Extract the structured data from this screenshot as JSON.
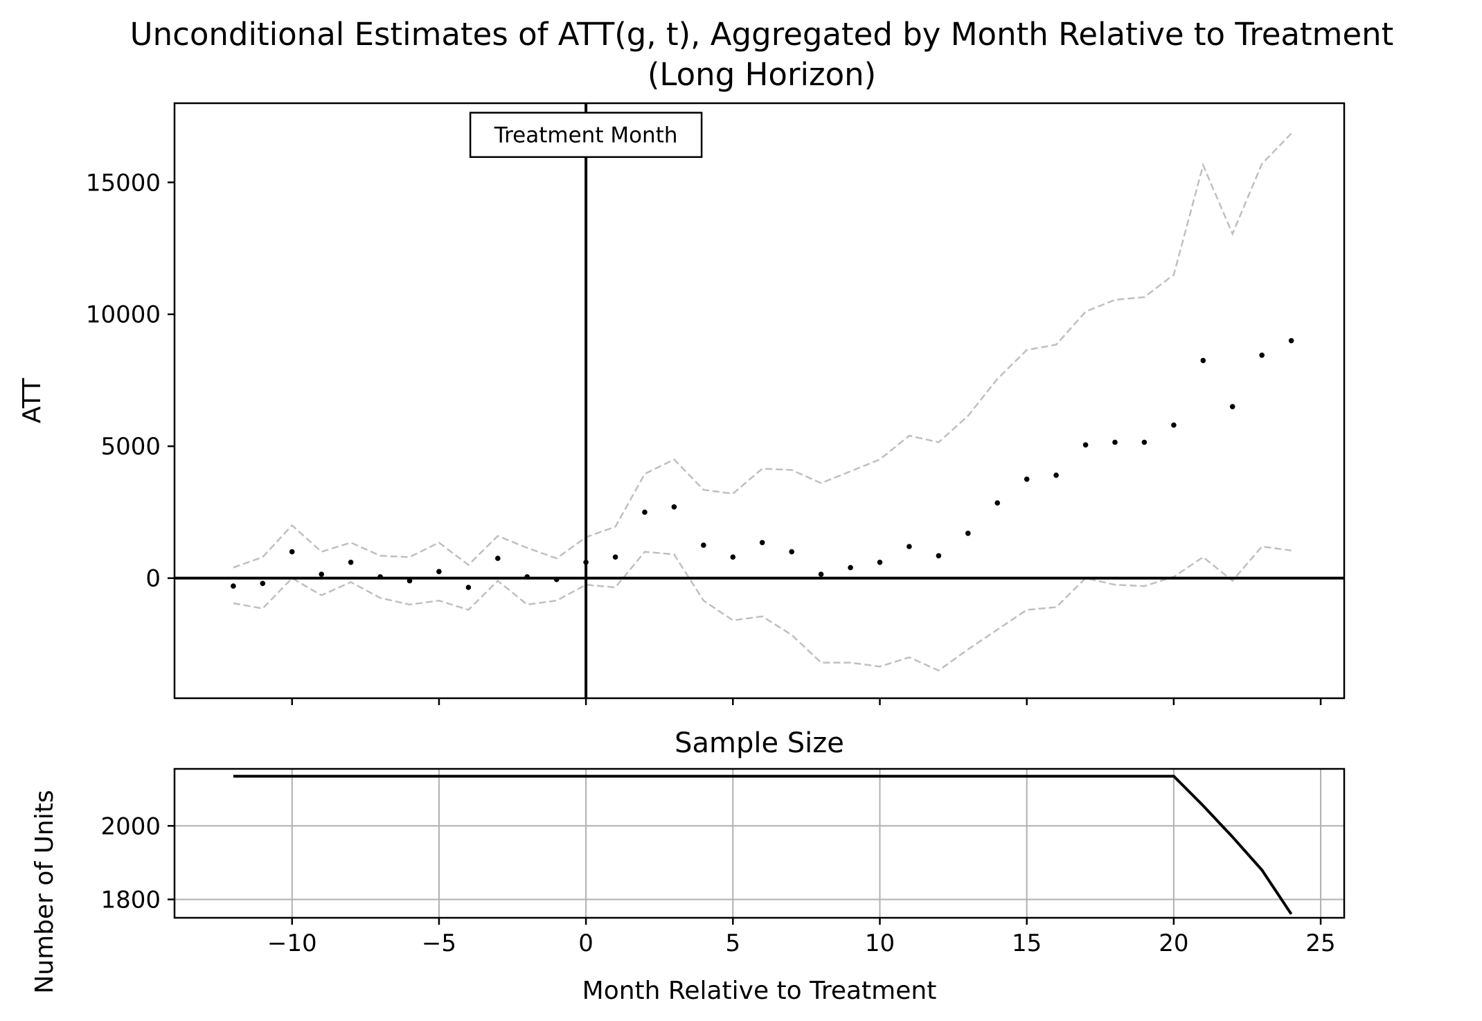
{
  "chart_data": [
    {
      "type": "scatter",
      "title": "Unconditional Estimates of ATT(g, t), Aggregated by Month Relative to Treatment",
      "subtitle": "(Long Horizon)",
      "xlabel": "",
      "ylabel": "ATT",
      "xlim": [
        -14,
        25.8
      ],
      "ylim": [
        -4550,
        18000
      ],
      "yticks": [
        0,
        5000,
        10000,
        15000
      ],
      "xticks": [
        -10,
        -5,
        0,
        5,
        10,
        15,
        20,
        25
      ],
      "grid": false,
      "reference_lines": {
        "vertical_x": 0,
        "horizontal_y": 0
      },
      "annotation": {
        "text": "Treatment Month",
        "x": 0,
        "y": 16800
      },
      "x": [
        -12,
        -11,
        -10,
        -9,
        -8,
        -7,
        -6,
        -5,
        -4,
        -3,
        -2,
        -1,
        0,
        1,
        2,
        3,
        4,
        5,
        6,
        7,
        8,
        9,
        10,
        11,
        12,
        13,
        14,
        15,
        16,
        17,
        18,
        19,
        20,
        21,
        22,
        23,
        24
      ],
      "series": [
        {
          "role": "estimate",
          "values": [
            -300,
            -200,
            1000,
            150,
            600,
            50,
            -100,
            250,
            -350,
            750,
            50,
            -50,
            600,
            800,
            2500,
            2700,
            1250,
            800,
            1350,
            1000,
            150,
            400,
            600,
            1200,
            850,
            1700,
            2850,
            3750,
            3900,
            5050,
            5150,
            5150,
            5800,
            8250,
            6500,
            8450,
            9000
          ],
          "color": "#000000"
        },
        {
          "role": "ci-upper",
          "values": [
            400,
            800,
            2000,
            1000,
            1350,
            850,
            800,
            1350,
            500,
            1600,
            1150,
            750,
            1550,
            1950,
            3950,
            4500,
            3350,
            3200,
            4150,
            4100,
            3600,
            4050,
            4500,
            5400,
            5150,
            6150,
            7550,
            8650,
            8850,
            10100,
            10550,
            10650,
            11500,
            15650,
            13050,
            15700,
            16850
          ],
          "color": "#bfbfbf"
        },
        {
          "role": "ci-lower",
          "values": [
            -950,
            -1150,
            0,
            -650,
            -150,
            -750,
            -1000,
            -850,
            -1200,
            -100,
            -1000,
            -850,
            -250,
            -350,
            1000,
            900,
            -850,
            -1600,
            -1450,
            -2150,
            -3200,
            -3200,
            -3350,
            -3000,
            -3500,
            -2700,
            -1950,
            -1200,
            -1100,
            0,
            -250,
            -300,
            50,
            800,
            -100,
            1200,
            1050
          ],
          "color": "#bfbfbf"
        }
      ]
    },
    {
      "type": "line",
      "title": "Sample Size",
      "xlabel": "Month Relative to Treatment",
      "ylabel": "Number of Units",
      "xlim": [
        -14,
        25.8
      ],
      "ylim": [
        1750,
        2155
      ],
      "yticks": [
        1800,
        2000
      ],
      "xticks": [
        -10,
        -5,
        0,
        5,
        10,
        15,
        20,
        25
      ],
      "grid": true,
      "series": [
        {
          "x": [
            -12,
            20,
            21,
            22,
            23,
            24
          ],
          "values": [
            2135,
            2135,
            2055,
            1970,
            1880,
            1760
          ],
          "color": "#000000"
        }
      ]
    }
  ]
}
